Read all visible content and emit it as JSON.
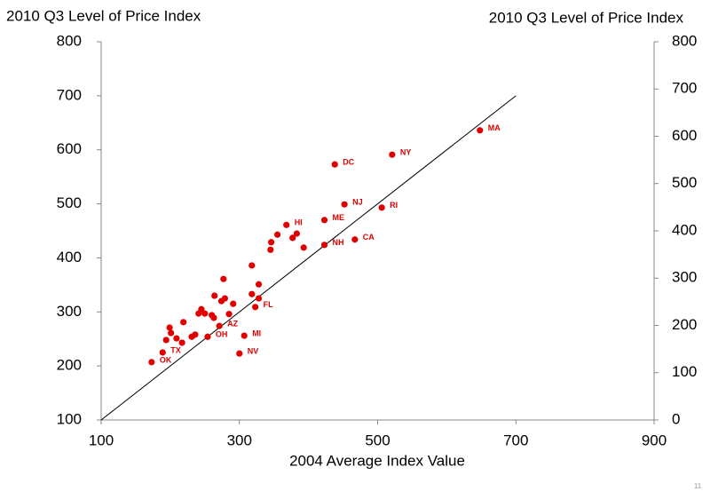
{
  "chart_data": {
    "type": "scatter",
    "y_label": "2010 Q3 Level of Price Index",
    "y2_label": "2010 Q3 Level of Price Index",
    "x_label": "2004 Average Index Value",
    "page_number": "11",
    "xlim": [
      100,
      900
    ],
    "xticks": [
      100,
      300,
      500,
      700,
      900
    ],
    "ylim": [
      100,
      800
    ],
    "yticks": [
      100,
      200,
      300,
      400,
      500,
      600,
      700,
      800
    ],
    "y2lim": [
      0,
      800
    ],
    "y2ticks": [
      0,
      100,
      200,
      300,
      400,
      500,
      600,
      700,
      800
    ],
    "reference_line": {
      "x": [
        100,
        700
      ],
      "values": [
        100,
        700
      ],
      "color": "#000000"
    },
    "series": [
      {
        "color": "#e00000",
        "x": [
          648,
          521,
          438,
          452,
          506,
          368,
          423,
          467,
          423,
          355,
          346,
          345,
          383,
          377,
          393,
          318,
          277,
          328,
          318,
          328,
          264,
          279,
          274,
          291,
          323,
          285,
          245,
          241,
          250,
          260,
          263,
          219,
          199,
          201,
          209,
          194,
          217,
          231,
          236,
          254,
          271,
          307,
          300,
          189,
          173
        ],
        "values": [
          636,
          591,
          573,
          499,
          493,
          461,
          470,
          434,
          424,
          443,
          429,
          415,
          445,
          437,
          419,
          386,
          361,
          351,
          333,
          325,
          330,
          325,
          320,
          315,
          309,
          296,
          305,
          297,
          297,
          294,
          289,
          281,
          271,
          261,
          251,
          248,
          243,
          254,
          258,
          254,
          274,
          256,
          223,
          225,
          207
        ],
        "labels": [
          "MA",
          "NY",
          "DC",
          "NJ",
          "RI",
          "HI",
          "ME",
          "CA",
          "NH",
          null,
          null,
          null,
          null,
          null,
          null,
          null,
          null,
          null,
          null,
          null,
          null,
          null,
          null,
          null,
          "FL",
          null,
          null,
          null,
          null,
          null,
          null,
          null,
          null,
          null,
          null,
          null,
          null,
          null,
          null,
          "OH",
          "AZ",
          "MI",
          "NV",
          "TX",
          "OK"
        ]
      }
    ]
  }
}
